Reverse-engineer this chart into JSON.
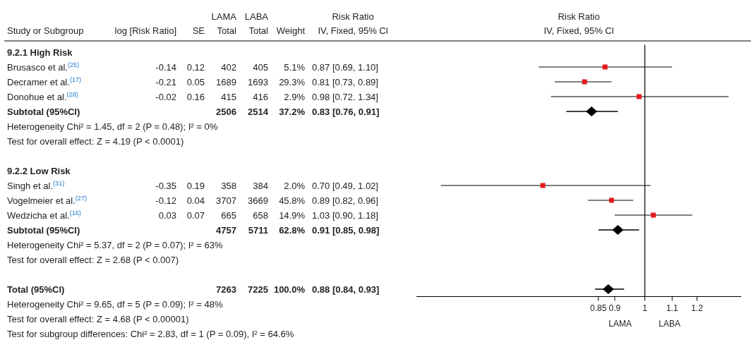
{
  "chart_data": [
    {
      "type": "other",
      "ylabel": "Study or Subgroup",
      "categories": [
        "9.2.1 High Risk",
        "Brusasco et al.$^{(25)}$",
        "Decramer et al.$^{(17)}$",
        "Donohue et al.$^{(28)}$",
        "Subtotal (95%Cl)",
        "Heterogeneity Chi² = 1.45, df = 2 (P = 0.48); I² = 0%",
        "Test for overall effect: Z = 4.19 (P < 0.0001)",
        null,
        "9.2.2 Low Risk",
        "Singh et al.$^{(31)}$",
        "Vogelmeier et al.$^{(27)}$",
        "Wedzicha et al.$^{(16)}$",
        "Subtotal (95%Cl)",
        "Heterogeneity Chi² = 5.37, df = 2 (P = 0.07); I² = 63%",
        "Test for overall effect: Z = 2.68 (P < 0.007)",
        null,
        "Total (95%Cl)",
        "Heterogeneity Chi² = 9.65, df = 5 (P = 0.09); I² = 48%",
        "Test for overall effect: Z = 4.68 (P < 0.00001)",
        "Test for subgroup differences: Chi² = 2.83, df = 1 (P = 0.09), I² = 64.6%"
      ],
      "series": [
        {
          "name": "log [Risk Ratio]",
          "values": [
            null,
            -0.14,
            -0.21,
            -0.02,
            null,
            null,
            null,
            null,
            null,
            -0.35,
            -0.12,
            0.03,
            null,
            null,
            null,
            null,
            null,
            null,
            null,
            null
          ],
          "value_labels": [
            null,
            "-0.14",
            "-0.21",
            "-0.02",
            null,
            null,
            null,
            null,
            null,
            "-0.35",
            "-0.12",
            "0.03",
            null,
            null,
            null,
            null,
            null,
            null,
            null,
            null
          ]
        },
        {
          "name": "SE",
          "values": [
            null,
            0.12,
            0.05,
            0.16,
            null,
            null,
            null,
            null,
            null,
            0.19,
            0.04,
            0.07,
            null,
            null,
            null,
            null,
            null,
            null,
            null,
            null
          ],
          "value_labels": [
            null,
            "0.12",
            "0.05",
            "0.16",
            null,
            null,
            null,
            null,
            null,
            "0.19",
            "0.04",
            "0.07",
            null,
            null,
            null,
            null,
            null,
            null,
            null,
            null
          ]
        },
        {
          "name": "LAMA\nTotal",
          "values": [
            null,
            402,
            1689,
            415,
            2506,
            null,
            null,
            null,
            null,
            358,
            3707,
            665,
            4757,
            null,
            null,
            null,
            7263,
            null,
            null,
            null
          ],
          "value_labels": [
            null,
            "402",
            "1689",
            "415",
            "2506",
            null,
            null,
            null,
            null,
            "358",
            "3707",
            "665",
            "4757",
            null,
            null,
            null,
            "7263",
            null,
            null,
            null
          ]
        },
        {
          "name": "LABA\nTotal",
          "values": [
            null,
            405,
            1693,
            416,
            2514,
            null,
            null,
            null,
            null,
            384,
            3669,
            658,
            5711,
            null,
            null,
            null,
            7225,
            null,
            null,
            null
          ],
          "value_labels": [
            null,
            "405",
            "1693",
            "416",
            "2514",
            null,
            null,
            null,
            null,
            "384",
            "3669",
            "658",
            "5711",
            null,
            null,
            null,
            "7225",
            null,
            null,
            null
          ]
        },
        {
          "name": "Weight",
          "values": [
            null,
            5.1,
            29.3,
            2.9,
            37.2,
            null,
            null,
            null,
            null,
            2.0,
            45.8,
            14.9,
            62.8,
            null,
            null,
            null,
            100.0,
            null,
            null,
            null
          ],
          "value_labels": [
            null,
            "5.1%",
            "29.3%",
            "2.9%",
            "37.2%",
            null,
            null,
            null,
            null,
            "2.0%",
            "45.8%",
            "14.9%",
            "62.8%",
            null,
            null,
            null,
            "100.0%",
            null,
            null,
            null
          ]
        },
        {
          "name": "Risk Ratio\nIV, Fixed, 95% Cl",
          "values": [
            null,
            0.87,
            0.81,
            0.98,
            0.83,
            null,
            null,
            null,
            null,
            0.7,
            0.89,
            1.03,
            0.91,
            null,
            null,
            null,
            0.88,
            null,
            null,
            null
          ],
          "value_labels": [
            null,
            "0.87 [0.69, 1.10]",
            "0.81 [0.73, 0.89]",
            "0.98 [0.72. 1.34]",
            "0.83 [0.76, 0.91]",
            null,
            null,
            null,
            null,
            "0.70 [0.49, 1.02]",
            "0.89 [0.82, 0.96]",
            "1.03 [0.90, 1.18]",
            "0.91 [0.85, 0.98]",
            null,
            null,
            null,
            "0.88 [0.84, 0.93]",
            null,
            null,
            null
          ]
        }
      ]
    },
    {
      "type": "scatter",
      "orientation": "horizontal",
      "title": "Risk Ratio",
      "subtitle": "IV, Fixed, 95% Cl",
      "categories": [
        null,
        null,
        null,
        null,
        null,
        null,
        null,
        null,
        null,
        null,
        null,
        null,
        null,
        null,
        null,
        null,
        null
      ],
      "series": [
        {
          "type": "scatter",
          "marker": "square",
          "color": "#e41a1c",
          "values": [
            null,
            0.87,
            0.81,
            0.98,
            null,
            null,
            null,
            null,
            null,
            0.7,
            0.89,
            1.03,
            null,
            null,
            null,
            null,
            null
          ],
          "errors": [
            null,
            [
              0.69,
              1.1
            ],
            [
              0.73,
              0.89
            ],
            [
              0.72,
              1.34
            ],
            null,
            null,
            null,
            null,
            null,
            [
              0.49,
              1.02
            ],
            [
              0.82,
              0.96
            ],
            [
              0.9,
              1.18
            ],
            null,
            null,
            null,
            null,
            null
          ]
        },
        {
          "type": "scatter",
          "marker": "diamond",
          "color": "#000000",
          "values": [
            null,
            null,
            null,
            null,
            0.83,
            null,
            null,
            null,
            null,
            null,
            null,
            null,
            0.91,
            null,
            null,
            null,
            0.88
          ],
          "errors": [
            null,
            null,
            null,
            null,
            [
              0.76,
              0.91
            ],
            null,
            null,
            null,
            null,
            null,
            null,
            null,
            [
              0.85,
              0.98
            ],
            null,
            null,
            null,
            [
              0.84,
              0.93
            ]
          ]
        }
      ],
      "xlim": [
        0.45,
        1.4
      ],
      "xticks": [
        0.85,
        0.9,
        1,
        1.1,
        1.2
      ],
      "log": "x",
      "ref_lines": [
        {
          "axis": "x",
          "value": 1,
          "color": "#000000"
        }
      ],
      "annotations": [
        "LAMA",
        "LABA"
      ]
    }
  ]
}
